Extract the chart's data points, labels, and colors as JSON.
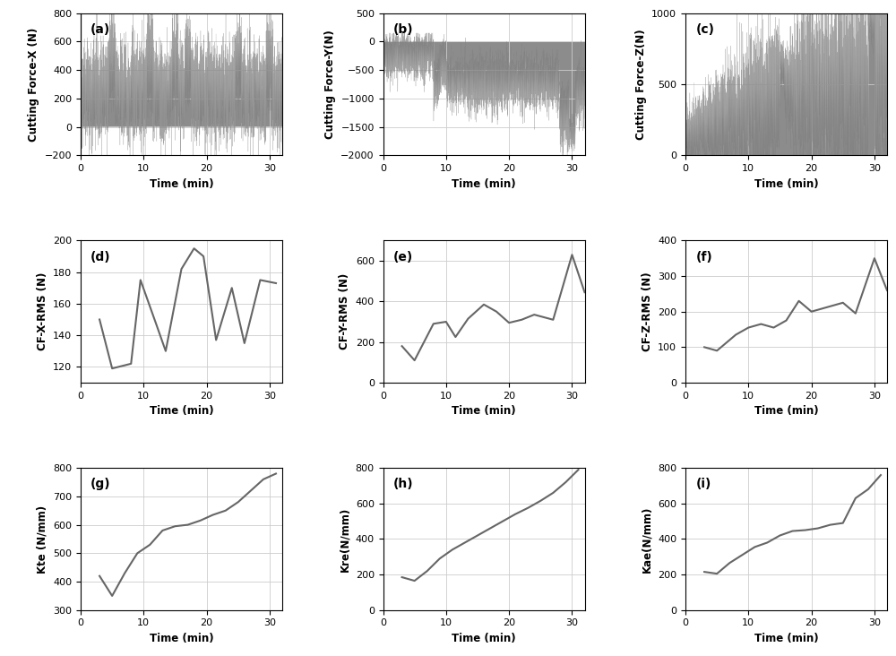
{
  "fig_width": 10.0,
  "fig_height": 7.32,
  "dpi": 100,
  "line_color": "#666666",
  "fill_color": "#808080",
  "bg_color": "#ffffff",
  "grid_color": "#cccccc",
  "label_fontsize": 8.5,
  "tick_fontsize": 8,
  "panel_label_fontsize": 10,
  "panels": {
    "a": {
      "label": "(a)",
      "ylabel": "Cutting Force-X (N)",
      "xlabel": "Time (min)",
      "ylim": [
        -200,
        800
      ],
      "yticks": [
        -200,
        0,
        200,
        400,
        600,
        800
      ],
      "xlim": [
        0,
        32
      ],
      "xticks": [
        0,
        10,
        20,
        30
      ]
    },
    "b": {
      "label": "(b)",
      "ylabel": "Cutting Force-Y(N)",
      "xlabel": "Time (min)",
      "ylim": [
        -2000,
        500
      ],
      "yticks": [
        -2000,
        -1500,
        -1000,
        -500,
        0,
        500
      ],
      "xlim": [
        0,
        32
      ],
      "xticks": [
        0,
        10,
        20,
        30
      ]
    },
    "c": {
      "label": "(c)",
      "ylabel": "Cutting Force-Z(N)",
      "xlabel": "Time (min)",
      "ylim": [
        0,
        1000
      ],
      "yticks": [
        0,
        500,
        1000
      ],
      "xlim": [
        0,
        32
      ],
      "xticks": [
        0,
        10,
        20,
        30
      ]
    },
    "d": {
      "label": "(d)",
      "ylabel": "CF-X-RMS (N)",
      "xlabel": "Time (min)",
      "ylim": [
        110,
        200
      ],
      "yticks": [
        120,
        140,
        160,
        180,
        200
      ],
      "xlim": [
        0,
        32
      ],
      "xticks": [
        0,
        10,
        20,
        30
      ],
      "x": [
        3,
        5,
        8,
        9.5,
        12,
        13.5,
        16,
        18,
        19.5,
        21.5,
        24,
        26,
        28.5,
        31
      ],
      "y": [
        150,
        119,
        122,
        175,
        147,
        130,
        182,
        195,
        190,
        137,
        170,
        135,
        175,
        173
      ]
    },
    "e": {
      "label": "(e)",
      "ylabel": "CF-Y-RMS (N)",
      "xlabel": "Time (min)",
      "ylim": [
        0,
        700
      ],
      "yticks": [
        0,
        200,
        400,
        600
      ],
      "xlim": [
        0,
        32
      ],
      "xticks": [
        0,
        10,
        20,
        30
      ],
      "x": [
        3,
        5,
        8,
        10,
        11.5,
        13.5,
        16,
        18,
        20,
        22,
        24,
        27,
        30,
        32
      ],
      "y": [
        180,
        110,
        290,
        300,
        225,
        315,
        385,
        350,
        295,
        310,
        335,
        310,
        630,
        445
      ]
    },
    "f": {
      "label": "(f)",
      "ylabel": "CF-Z-RMS (N)",
      "xlabel": "Time (min)",
      "ylim": [
        0,
        400
      ],
      "yticks": [
        0,
        100,
        200,
        300,
        400
      ],
      "xlim": [
        0,
        32
      ],
      "xticks": [
        0,
        10,
        20,
        30
      ],
      "x": [
        3,
        5,
        8,
        10,
        12,
        14,
        16,
        18,
        20,
        22,
        25,
        27,
        30,
        32
      ],
      "y": [
        100,
        90,
        135,
        155,
        165,
        155,
        175,
        230,
        200,
        210,
        225,
        195,
        350,
        260
      ]
    },
    "g": {
      "label": "(g)",
      "ylabel": "Kte (N/mm)",
      "xlabel": "Time (min)",
      "ylim": [
        300,
        800
      ],
      "yticks": [
        300,
        400,
        500,
        600,
        700,
        800
      ],
      "xlim": [
        0,
        32
      ],
      "xticks": [
        0,
        10,
        20,
        30
      ],
      "x": [
        3,
        5,
        7,
        9,
        11,
        13,
        15,
        17,
        19,
        21,
        23,
        25,
        27,
        29,
        31
      ],
      "y": [
        420,
        350,
        430,
        500,
        530,
        580,
        595,
        600,
        615,
        635,
        650,
        680,
        720,
        760,
        780
      ]
    },
    "h": {
      "label": "(h)",
      "ylabel": "Kre(N/mm)",
      "xlabel": "Time (min)",
      "ylim": [
        0,
        800
      ],
      "yticks": [
        0,
        200,
        400,
        600,
        800
      ],
      "xlim": [
        0,
        32
      ],
      "xticks": [
        0,
        10,
        20,
        30
      ],
      "x": [
        3,
        5,
        7,
        9,
        11,
        13,
        15,
        17,
        19,
        21,
        23,
        25,
        27,
        29,
        31
      ],
      "y": [
        185,
        165,
        220,
        290,
        340,
        380,
        420,
        460,
        500,
        540,
        575,
        615,
        660,
        720,
        790
      ]
    },
    "i": {
      "label": "(i)",
      "ylabel": "Kae(N/mm)",
      "xlabel": "Time (min)",
      "ylim": [
        0,
        800
      ],
      "yticks": [
        0,
        200,
        400,
        600,
        800
      ],
      "xlim": [
        0,
        32
      ],
      "xticks": [
        0,
        10,
        20,
        30
      ],
      "x": [
        3,
        5,
        7,
        9,
        11,
        13,
        15,
        17,
        19,
        21,
        23,
        25,
        27,
        29,
        31
      ],
      "y": [
        215,
        205,
        265,
        310,
        355,
        380,
        420,
        445,
        450,
        460,
        480,
        490,
        630,
        680,
        760
      ]
    }
  }
}
